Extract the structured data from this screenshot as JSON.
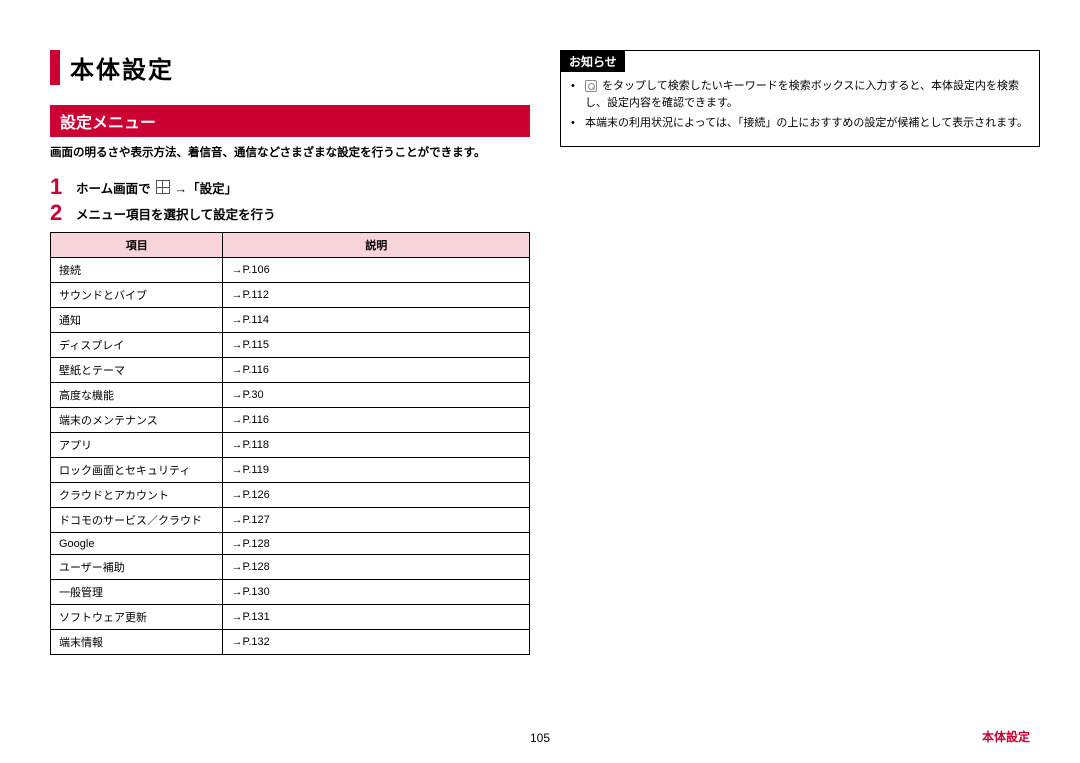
{
  "accent_color": "#cc0033",
  "table_header_bg": "#f7d4d9",
  "main_title": "本体設定",
  "sub_title": "設定メニュー",
  "intro": "画面の明るさや表示方法、着信音、通信などさまざまな設定を行うことができます。",
  "steps": [
    {
      "num": "1",
      "prefix": "ホーム画面で ",
      "suffix": " →「設定」",
      "has_icon": true
    },
    {
      "num": "2",
      "prefix": "メニュー項目を選択して設定を行う",
      "suffix": "",
      "has_icon": false
    }
  ],
  "table": {
    "headers": [
      "項目",
      "説明"
    ],
    "rows": [
      [
        "接続",
        "→P.106"
      ],
      [
        "サウンドとバイブ",
        "→P.112"
      ],
      [
        "通知",
        "→P.114"
      ],
      [
        "ディスプレイ",
        "→P.115"
      ],
      [
        "壁紙とテーマ",
        "→P.116"
      ],
      [
        "高度な機能",
        "→P.30"
      ],
      [
        "端末のメンテナンス",
        "→P.116"
      ],
      [
        "アプリ",
        "→P.118"
      ],
      [
        "ロック画面とセキュリティ",
        "→P.119"
      ],
      [
        "クラウドとアカウント",
        "→P.126"
      ],
      [
        "ドコモのサービス／クラウド",
        "→P.127"
      ],
      [
        "Google",
        "→P.128"
      ],
      [
        "ユーザー補助",
        "→P.128"
      ],
      [
        "一般管理",
        "→P.130"
      ],
      [
        "ソフトウェア更新",
        "→P.131"
      ],
      [
        "端末情報",
        "→P.132"
      ]
    ]
  },
  "notice": {
    "header": "お知らせ",
    "items": [
      {
        "has_icon": true,
        "text": " をタップして検索したいキーワードを検索ボックスに入力すると、本体設定内を検索し、設定内容を確認できます。"
      },
      {
        "has_icon": false,
        "text": "本端末の利用状況によっては、「接続」の上におすすめの設定が候補として表示されます。"
      }
    ]
  },
  "footer": {
    "page_num": "105",
    "section": "本体設定"
  }
}
